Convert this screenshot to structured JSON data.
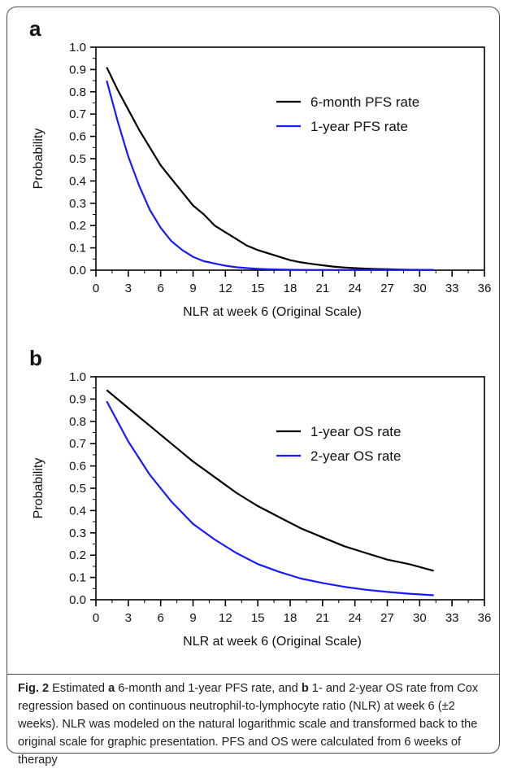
{
  "chart_data": [
    {
      "panel_label": "a",
      "type": "line",
      "xlabel": "NLR at week 6 (Original Scale)",
      "ylabel": "Probability",
      "xlim": [
        0,
        36
      ],
      "ylim": [
        0,
        1.0
      ],
      "xticks": [
        0,
        3,
        6,
        9,
        12,
        15,
        18,
        21,
        24,
        27,
        30,
        33,
        36
      ],
      "yticks": [
        "0.0",
        "0.1",
        "0.2",
        "0.3",
        "0.4",
        "0.5",
        "0.6",
        "0.7",
        "0.8",
        "0.9",
        "1.0"
      ],
      "legend_position": "top-right",
      "series": [
        {
          "name": "6-month PFS rate",
          "color": "#000000",
          "x": [
            1,
            2,
            3,
            4,
            5,
            6,
            7,
            8,
            9,
            10,
            11,
            12,
            13,
            14,
            15,
            16,
            17,
            18,
            19,
            20,
            21,
            22,
            23,
            24,
            25,
            26,
            27,
            28,
            29,
            30,
            31.3
          ],
          "y": [
            0.91,
            0.81,
            0.72,
            0.63,
            0.55,
            0.47,
            0.41,
            0.35,
            0.29,
            0.25,
            0.2,
            0.17,
            0.14,
            0.11,
            0.09,
            0.075,
            0.06,
            0.045,
            0.035,
            0.028,
            0.022,
            0.016,
            0.012,
            0.009,
            0.007,
            0.005,
            0.004,
            0.003,
            0.002,
            0.0015,
            0.001
          ]
        },
        {
          "name": "1-year PFS rate",
          "color": "#1a1aff",
          "x": [
            1,
            2,
            3,
            4,
            5,
            6,
            7,
            8,
            9,
            10,
            11,
            12,
            13,
            14,
            15,
            16,
            17,
            18,
            19,
            20,
            21,
            22,
            23,
            24,
            25,
            26,
            27,
            28,
            29,
            30,
            31.3
          ],
          "y": [
            0.85,
            0.67,
            0.51,
            0.38,
            0.27,
            0.19,
            0.13,
            0.09,
            0.06,
            0.04,
            0.03,
            0.02,
            0.013,
            0.009,
            0.006,
            0.004,
            0.003,
            0.002,
            0.0015,
            0.001,
            0.001,
            0.001,
            0.001,
            0.001,
            0.001,
            0.001,
            0.001,
            0.001,
            0.001,
            0.001,
            0.001
          ]
        }
      ]
    },
    {
      "panel_label": "b",
      "type": "line",
      "xlabel": "NLR at week 6 (Original Scale)",
      "ylabel": "Probability",
      "xlim": [
        0,
        36
      ],
      "ylim": [
        0,
        1.0
      ],
      "xticks": [
        0,
        3,
        6,
        9,
        12,
        15,
        18,
        21,
        24,
        27,
        30,
        33,
        36
      ],
      "yticks": [
        "0.0",
        "0.1",
        "0.2",
        "0.3",
        "0.4",
        "0.5",
        "0.6",
        "0.7",
        "0.8",
        "0.9",
        "1.0"
      ],
      "legend_position": "top-right",
      "series": [
        {
          "name": "1-year OS rate",
          "color": "#000000",
          "x": [
            1,
            3,
            5,
            7,
            9,
            11,
            13,
            15,
            17,
            19,
            21,
            23,
            25,
            27,
            29,
            31.3
          ],
          "y": [
            0.94,
            0.86,
            0.78,
            0.7,
            0.62,
            0.55,
            0.48,
            0.42,
            0.37,
            0.32,
            0.28,
            0.24,
            0.21,
            0.18,
            0.16,
            0.13
          ]
        },
        {
          "name": "2-year OS rate",
          "color": "#1a1aff",
          "x": [
            1,
            3,
            5,
            7,
            9,
            11,
            13,
            15,
            17,
            19,
            21,
            23,
            25,
            27,
            29,
            31.3
          ],
          "y": [
            0.89,
            0.71,
            0.56,
            0.44,
            0.34,
            0.27,
            0.21,
            0.16,
            0.125,
            0.095,
            0.075,
            0.058,
            0.045,
            0.035,
            0.027,
            0.02
          ]
        }
      ]
    }
  ],
  "caption": {
    "fig_label": "Fig. 2",
    "part1": " Estimated ",
    "letter_a": "a",
    "part2": " 6-month and 1-year PFS rate, and ",
    "letter_b": "b",
    "part3": " 1- and 2-year OS rate from Cox regression based on continuous neutrophil-to-lymphocyte ratio (NLR) at week 6 (±2 weeks). NLR was modeled on the natural logarithmic scale and transformed back to the original scale for graphic presentation. PFS and OS were calculated from 6 weeks of therapy"
  }
}
